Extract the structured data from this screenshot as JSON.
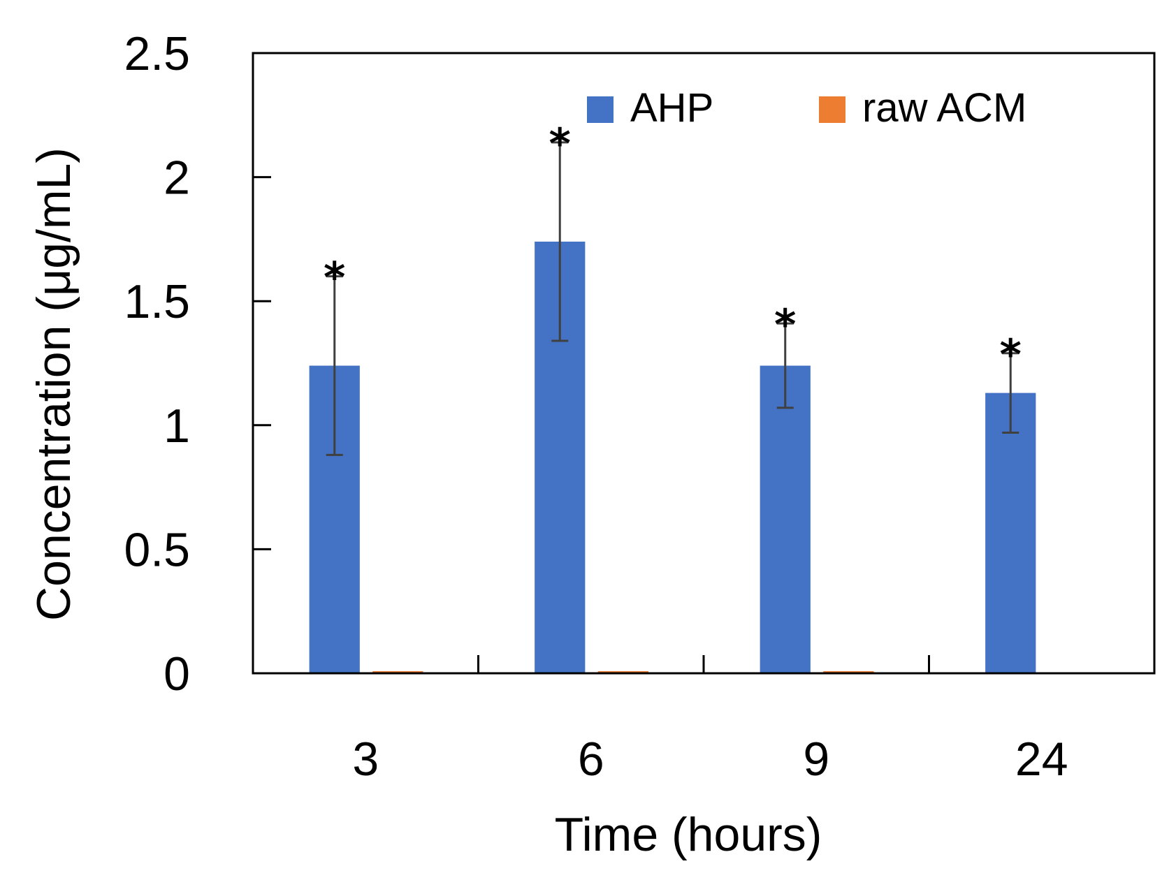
{
  "chart_data": {
    "type": "bar",
    "title": "",
    "xlabel": "Time (hours)",
    "ylabel": "Concentration (μg/mL)",
    "categories": [
      "3",
      "6",
      "9",
      "24"
    ],
    "ylim": [
      0,
      2.5
    ],
    "yticks": [
      "0",
      "0.5",
      "1",
      "1.5",
      "2",
      "2.5"
    ],
    "ytick_values": [
      0,
      0.5,
      1,
      1.5,
      2,
      2.5
    ],
    "grid": false,
    "legend_position": "top-right",
    "series": [
      {
        "name": "AHP",
        "color": "#4472C4",
        "values": [
          1.24,
          1.74,
          1.24,
          1.13
        ],
        "errors": [
          0.36,
          0.4,
          0.17,
          0.16
        ],
        "annotations": [
          "*",
          "*",
          "*",
          "*"
        ]
      },
      {
        "name": "raw ACM",
        "color": "#ED7D31",
        "values": [
          0.005,
          0.005,
          0.005,
          0
        ],
        "errors": [
          0,
          0,
          0,
          0
        ],
        "annotations": [
          "",
          "",
          "",
          ""
        ]
      }
    ]
  }
}
